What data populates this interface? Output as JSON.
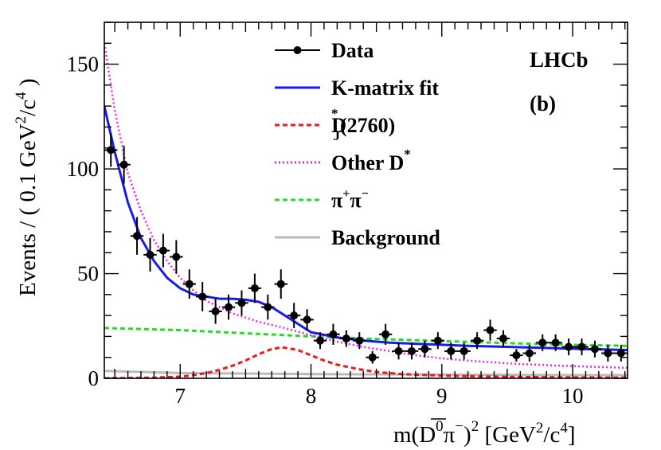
{
  "chart_data": {
    "type": "scatter",
    "title": "",
    "badge": "LHCb",
    "panel_label": "(b)",
    "xlabel": {
      "pre": "m(",
      "bar": "D",
      "sup1": "0",
      "mid": "π",
      "sup2": "−",
      "close": ")",
      "sup3": "2",
      "unit_open": " [GeV",
      "sup4": "2",
      "unit_slash": "/c",
      "sup5": "4",
      "unit_close": "]"
    },
    "ylabel": {
      "pre": "Events / ( 0.1 GeV",
      "sup1": "2",
      "slash": "/c",
      "sup2": "4",
      "close": " )"
    },
    "xlim": [
      6.42,
      10.42
    ],
    "ylim": [
      0,
      170
    ],
    "xticks": [
      7,
      8,
      9,
      10
    ],
    "yticks": [
      0,
      50,
      100,
      150
    ],
    "legend": {
      "data": "Data",
      "fit": "K-matrix fit",
      "dj_main": "D",
      "dj_sup": "*",
      "dj_sub": "J",
      "dj_tail": "(2760)",
      "other_main": "Other D",
      "other_sup": "*",
      "pipi_a": "π",
      "pipi_sup1": "+",
      "pipi_b": "π",
      "pipi_sup2": "−",
      "bkg": "Background"
    },
    "colors": {
      "fit": "#1a1aee",
      "dj": "#ee1a1a",
      "other": "#ee22ee",
      "pipi": "#22dd22",
      "bkg": "#bbbbbb",
      "data": "#000000"
    },
    "data_points": [
      {
        "x": 6.47,
        "y": 109,
        "err": 8
      },
      {
        "x": 6.57,
        "y": 102,
        "err": 9
      },
      {
        "x": 6.67,
        "y": 68,
        "err": 9
      },
      {
        "x": 6.77,
        "y": 59,
        "err": 8
      },
      {
        "x": 6.87,
        "y": 61,
        "err": 8
      },
      {
        "x": 6.97,
        "y": 58,
        "err": 8
      },
      {
        "x": 7.07,
        "y": 45,
        "err": 7
      },
      {
        "x": 7.17,
        "y": 39,
        "err": 7
      },
      {
        "x": 7.27,
        "y": 32,
        "err": 6
      },
      {
        "x": 7.37,
        "y": 34,
        "err": 6
      },
      {
        "x": 7.47,
        "y": 36,
        "err": 6
      },
      {
        "x": 7.57,
        "y": 43,
        "err": 7
      },
      {
        "x": 7.67,
        "y": 34,
        "err": 6
      },
      {
        "x": 7.77,
        "y": 45,
        "err": 7
      },
      {
        "x": 7.87,
        "y": 30,
        "err": 6
      },
      {
        "x": 7.97,
        "y": 28,
        "err": 5
      },
      {
        "x": 8.07,
        "y": 18,
        "err": 4
      },
      {
        "x": 8.17,
        "y": 21,
        "err": 5
      },
      {
        "x": 8.27,
        "y": 19,
        "err": 4
      },
      {
        "x": 8.37,
        "y": 18,
        "err": 4
      },
      {
        "x": 8.47,
        "y": 10,
        "err": 3
      },
      {
        "x": 8.57,
        "y": 21,
        "err": 5
      },
      {
        "x": 8.67,
        "y": 13,
        "err": 4
      },
      {
        "x": 8.77,
        "y": 13,
        "err": 4
      },
      {
        "x": 8.87,
        "y": 14,
        "err": 4
      },
      {
        "x": 8.97,
        "y": 18,
        "err": 4
      },
      {
        "x": 9.07,
        "y": 13,
        "err": 4
      },
      {
        "x": 9.17,
        "y": 13,
        "err": 4
      },
      {
        "x": 9.27,
        "y": 18,
        "err": 4
      },
      {
        "x": 9.37,
        "y": 23,
        "err": 5
      },
      {
        "x": 9.47,
        "y": 19,
        "err": 4
      },
      {
        "x": 9.57,
        "y": 11,
        "err": 3
      },
      {
        "x": 9.67,
        "y": 12,
        "err": 4
      },
      {
        "x": 9.77,
        "y": 17,
        "err": 4
      },
      {
        "x": 9.87,
        "y": 17,
        "err": 4
      },
      {
        "x": 9.97,
        "y": 15,
        "err": 4
      },
      {
        "x": 10.07,
        "y": 15,
        "err": 4
      },
      {
        "x": 10.17,
        "y": 14,
        "err": 4
      },
      {
        "x": 10.27,
        "y": 12,
        "err": 4
      },
      {
        "x": 10.37,
        "y": 12,
        "err": 4
      }
    ],
    "data_bin_halfwidth": 0.05,
    "series": [
      {
        "name": "K-matrix fit",
        "key": "fit",
        "style": "solid",
        "x": [
          6.42,
          6.5,
          6.6,
          6.7,
          6.8,
          6.9,
          7.0,
          7.1,
          7.2,
          7.3,
          7.4,
          7.5,
          7.6,
          7.7,
          7.8,
          7.9,
          8.0,
          8.2,
          8.4,
          8.6,
          8.8,
          9.0,
          9.2,
          9.5,
          9.8,
          10.1,
          10.42
        ],
        "y": [
          130,
          108,
          84,
          67,
          56,
          48,
          43,
          40,
          39,
          38,
          38,
          37.5,
          36.5,
          34,
          30,
          26,
          22,
          19.5,
          18,
          17,
          16.5,
          16,
          15.5,
          15,
          14.5,
          14,
          13.5
        ]
      },
      {
        "name": "D_J*(2760)",
        "key": "dj",
        "style": "dash",
        "x": [
          6.42,
          6.8,
          7.0,
          7.1,
          7.2,
          7.3,
          7.4,
          7.5,
          7.6,
          7.7,
          7.78,
          7.9,
          8.0,
          8.1,
          8.2,
          8.35,
          8.5,
          8.7,
          8.9,
          9.2,
          9.6,
          10.0,
          10.42
        ],
        "y": [
          0,
          0.3,
          0.8,
          1.5,
          2.5,
          4,
          6,
          8.5,
          11.5,
          14,
          14.8,
          13.5,
          11,
          8.5,
          6.5,
          4.5,
          3,
          2,
          1.5,
          1,
          0.6,
          0.4,
          0.3
        ]
      },
      {
        "name": "Other D*",
        "key": "other",
        "style": "dot",
        "x": [
          6.42,
          6.5,
          6.6,
          6.7,
          6.8,
          6.9,
          7.0,
          7.1,
          7.2,
          7.3,
          7.4,
          7.5,
          7.6,
          7.7,
          7.8,
          8.0,
          8.2,
          8.4,
          8.6,
          8.8,
          9.0,
          9.3,
          9.6,
          10.0,
          10.42
        ],
        "y": [
          160,
          128,
          98,
          80,
          66,
          56,
          48,
          42,
          37,
          34,
          31,
          29,
          27,
          25.5,
          24,
          20.5,
          17.5,
          15,
          13,
          11,
          9.5,
          8,
          6.8,
          5.8,
          5
        ]
      },
      {
        "name": "π+π−",
        "key": "pipi",
        "style": "dash",
        "x": [
          6.42,
          7.0,
          7.5,
          8.0,
          8.5,
          9.0,
          9.5,
          10.0,
          10.42
        ],
        "y": [
          24,
          23,
          21.5,
          20,
          18.8,
          17.8,
          16.8,
          16,
          15.5
        ]
      },
      {
        "name": "Background",
        "key": "bkg",
        "style": "solid",
        "x": [
          6.42,
          7.0,
          8.0,
          9.0,
          10.0,
          10.42
        ],
        "y": [
          3.5,
          2.5,
          2,
          1.8,
          1.5,
          1.5
        ]
      }
    ]
  }
}
